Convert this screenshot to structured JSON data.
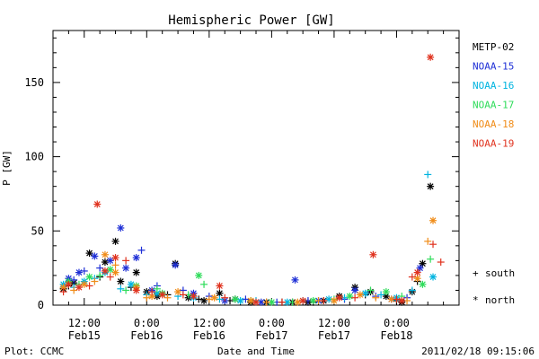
{
  "chart_data": {
    "type": "scatter",
    "title": "Hemispheric Power [GW]",
    "xlabel": "Date and Time",
    "ylabel": "P [GW]",
    "x_unit": "hours",
    "x_range": [
      6,
      84
    ],
    "ylim": [
      0,
      185
    ],
    "y_ticks": [
      0,
      50,
      100,
      150
    ],
    "x_ticks": [
      {
        "x": 12,
        "line1": "12:00",
        "line2": "Feb15"
      },
      {
        "x": 24,
        "line1": "0:00",
        "line2": "Feb16"
      },
      {
        "x": 36,
        "line1": "12:00",
        "line2": "Feb16"
      },
      {
        "x": 48,
        "line1": "0:00",
        "line2": "Feb17"
      },
      {
        "x": 60,
        "line1": "12:00",
        "line2": "Feb17"
      },
      {
        "x": 72,
        "line1": "0:00",
        "line2": "Feb18"
      }
    ],
    "marker_legend": [
      {
        "symbol": "+",
        "label": "south"
      },
      {
        "symbol": "*",
        "label": "north"
      }
    ],
    "series": [
      {
        "name": "METP-02",
        "color": "#000000",
        "points": [
          [
            8,
            11,
            "*"
          ],
          [
            10,
            15,
            "*"
          ],
          [
            13,
            35,
            "*"
          ],
          [
            16,
            29,
            "*"
          ],
          [
            18,
            43,
            "*"
          ],
          [
            19,
            16,
            "*"
          ],
          [
            22,
            22,
            "*"
          ],
          [
            24,
            9,
            "*"
          ],
          [
            26,
            6,
            "*"
          ],
          [
            29.5,
            28,
            "*"
          ],
          [
            32,
            5,
            "*"
          ],
          [
            35,
            3,
            "*"
          ],
          [
            38,
            8,
            "*"
          ],
          [
            41,
            4,
            "*"
          ],
          [
            44,
            2,
            "*"
          ],
          [
            47,
            2,
            "*"
          ],
          [
            52,
            2,
            "*"
          ],
          [
            55,
            2,
            "*"
          ],
          [
            58,
            3,
            "*"
          ],
          [
            61,
            6,
            "*"
          ],
          [
            64,
            12,
            "*"
          ],
          [
            67,
            9,
            "*"
          ],
          [
            70,
            6,
            "*"
          ],
          [
            73,
            2,
            "*"
          ],
          [
            75,
            9,
            "*"
          ],
          [
            77,
            28,
            "*"
          ],
          [
            78.5,
            80,
            "*"
          ],
          [
            9,
            13,
            "+"
          ],
          [
            15,
            19,
            "+"
          ],
          [
            21,
            12,
            "+"
          ],
          [
            28,
            7,
            "+"
          ],
          [
            34,
            4,
            "+"
          ],
          [
            40,
            3,
            "+"
          ],
          [
            50,
            2,
            "+"
          ],
          [
            56,
            2,
            "+"
          ],
          [
            66,
            7,
            "+"
          ],
          [
            72,
            3,
            "+"
          ],
          [
            76,
            16,
            "+"
          ]
        ]
      },
      {
        "name": "NOAA-15",
        "color": "#1e2fd6",
        "points": [
          [
            9,
            18,
            "*"
          ],
          [
            11,
            22,
            "*"
          ],
          [
            14,
            33,
            "*"
          ],
          [
            17,
            30,
            "*"
          ],
          [
            19,
            52,
            "*"
          ],
          [
            20,
            25,
            "*"
          ],
          [
            22,
            32,
            "*"
          ],
          [
            25,
            10,
            "*"
          ],
          [
            29.5,
            27,
            "*"
          ],
          [
            33,
            8,
            "*"
          ],
          [
            39,
            3,
            "*"
          ],
          [
            46,
            2,
            "*"
          ],
          [
            52.5,
            17,
            "*"
          ],
          [
            57,
            3,
            "*"
          ],
          [
            64,
            10,
            "*"
          ],
          [
            71,
            4,
            "*"
          ],
          [
            76.5,
            25,
            "*"
          ],
          [
            10,
            17,
            "+"
          ],
          [
            12,
            23,
            "+"
          ],
          [
            15,
            25,
            "+"
          ],
          [
            23,
            37,
            "+"
          ],
          [
            26,
            13,
            "+"
          ],
          [
            31,
            10,
            "+"
          ],
          [
            36,
            6,
            "+"
          ],
          [
            43,
            4,
            "+"
          ],
          [
            49,
            2,
            "+"
          ],
          [
            55,
            3,
            "+"
          ],
          [
            62,
            4,
            "+"
          ],
          [
            68,
            6,
            "+"
          ],
          [
            74,
            5,
            "+"
          ]
        ]
      },
      {
        "name": "NOAA-16",
        "color": "#00b4e0",
        "points": [
          [
            8,
            14,
            "*"
          ],
          [
            12,
            16,
            "*"
          ],
          [
            16,
            22,
            "*"
          ],
          [
            21,
            14,
            "*"
          ],
          [
            26,
            8,
            "*"
          ],
          [
            33,
            5,
            "*"
          ],
          [
            42,
            3,
            "*"
          ],
          [
            51,
            2,
            "*"
          ],
          [
            59,
            4,
            "*"
          ],
          [
            66,
            8,
            "*"
          ],
          [
            72,
            5,
            "*"
          ],
          [
            79,
            19,
            "*"
          ],
          [
            10,
            12,
            "+"
          ],
          [
            14,
            18,
            "+"
          ],
          [
            19,
            11,
            "+"
          ],
          [
            24,
            7,
            "+"
          ],
          [
            30,
            6,
            "+"
          ],
          [
            38,
            4,
            "+"
          ],
          [
            45,
            3,
            "+"
          ],
          [
            54,
            3,
            "+"
          ],
          [
            62,
            5,
            "+"
          ],
          [
            69,
            7,
            "+"
          ],
          [
            75,
            10,
            "+"
          ],
          [
            78,
            88,
            "+"
          ]
        ]
      },
      {
        "name": "NOAA-17",
        "color": "#2edc5a",
        "points": [
          [
            9,
            16,
            "*"
          ],
          [
            13,
            19,
            "*"
          ],
          [
            17,
            24,
            "*"
          ],
          [
            22,
            13,
            "*"
          ],
          [
            27,
            8,
            "*"
          ],
          [
            34,
            20,
            "*"
          ],
          [
            41,
            4,
            "*"
          ],
          [
            48,
            2,
            "*"
          ],
          [
            56,
            3,
            "*"
          ],
          [
            63,
            6,
            "*"
          ],
          [
            70,
            9,
            "*"
          ],
          [
            77,
            14,
            "*"
          ],
          [
            11,
            14,
            "+"
          ],
          [
            15,
            20,
            "+"
          ],
          [
            20,
            10,
            "+"
          ],
          [
            26,
            11,
            "+"
          ],
          [
            32,
            7,
            "+"
          ],
          [
            35,
            14,
            "+"
          ],
          [
            44,
            3,
            "+"
          ],
          [
            52,
            2,
            "+"
          ],
          [
            60,
            4,
            "+"
          ],
          [
            67,
            10,
            "+"
          ],
          [
            73,
            6,
            "+"
          ],
          [
            78.5,
            31,
            "+"
          ]
        ]
      },
      {
        "name": "NOAA-18",
        "color": "#f08c18",
        "points": [
          [
            8,
            12,
            "*"
          ],
          [
            12,
            14,
            "*"
          ],
          [
            16,
            34,
            "*"
          ],
          [
            18,
            22,
            "*"
          ],
          [
            22,
            12,
            "*"
          ],
          [
            25,
            6,
            "*"
          ],
          [
            30,
            9,
            "*"
          ],
          [
            37,
            5,
            "*"
          ],
          [
            44,
            3,
            "*"
          ],
          [
            53,
            2,
            "*"
          ],
          [
            60,
            3,
            "*"
          ],
          [
            65,
            7,
            "*"
          ],
          [
            71,
            4,
            "*"
          ],
          [
            76,
            18,
            "*"
          ],
          [
            79,
            57,
            "*"
          ],
          [
            10,
            10,
            "+"
          ],
          [
            14,
            16,
            "+"
          ],
          [
            18,
            27,
            "+"
          ],
          [
            24,
            5,
            "+"
          ],
          [
            28,
            5,
            "+"
          ],
          [
            36,
            4,
            "+"
          ],
          [
            47,
            2,
            "+"
          ],
          [
            57,
            3,
            "+"
          ],
          [
            68,
            5,
            "+"
          ],
          [
            74,
            3,
            "+"
          ],
          [
            78,
            43,
            "+"
          ]
        ]
      },
      {
        "name": "NOAA-19",
        "color": "#e0321e",
        "points": [
          [
            9,
            14,
            "*"
          ],
          [
            11,
            12,
            "*"
          ],
          [
            14.5,
            68,
            "*"
          ],
          [
            16,
            23,
            "*"
          ],
          [
            18,
            32,
            "*"
          ],
          [
            22,
            10,
            "*"
          ],
          [
            27,
            7,
            "*"
          ],
          [
            33,
            6,
            "*"
          ],
          [
            38,
            13,
            "*"
          ],
          [
            45,
            2,
            "*"
          ],
          [
            54,
            3,
            "*"
          ],
          [
            61,
            5,
            "*"
          ],
          [
            67.5,
            34,
            "*"
          ],
          [
            73,
            3,
            "*"
          ],
          [
            76,
            22,
            "*"
          ],
          [
            78.5,
            167,
            "*"
          ],
          [
            8,
            9,
            "+"
          ],
          [
            13,
            13,
            "+"
          ],
          [
            17,
            19,
            "+"
          ],
          [
            20,
            30,
            "+"
          ],
          [
            25,
            9,
            "+"
          ],
          [
            31,
            7,
            "+"
          ],
          [
            39,
            5,
            "+"
          ],
          [
            50,
            2,
            "+"
          ],
          [
            58,
            3,
            "+"
          ],
          [
            64,
            5,
            "+"
          ],
          [
            72,
            4,
            "+"
          ],
          [
            75,
            19,
            "+"
          ],
          [
            79,
            41,
            "+"
          ],
          [
            80.5,
            29,
            "+"
          ]
        ]
      }
    ]
  },
  "footer": {
    "left": "Plot: CCMC",
    "center": "Date and Time",
    "right": "2011/02/18 09:15:06"
  }
}
